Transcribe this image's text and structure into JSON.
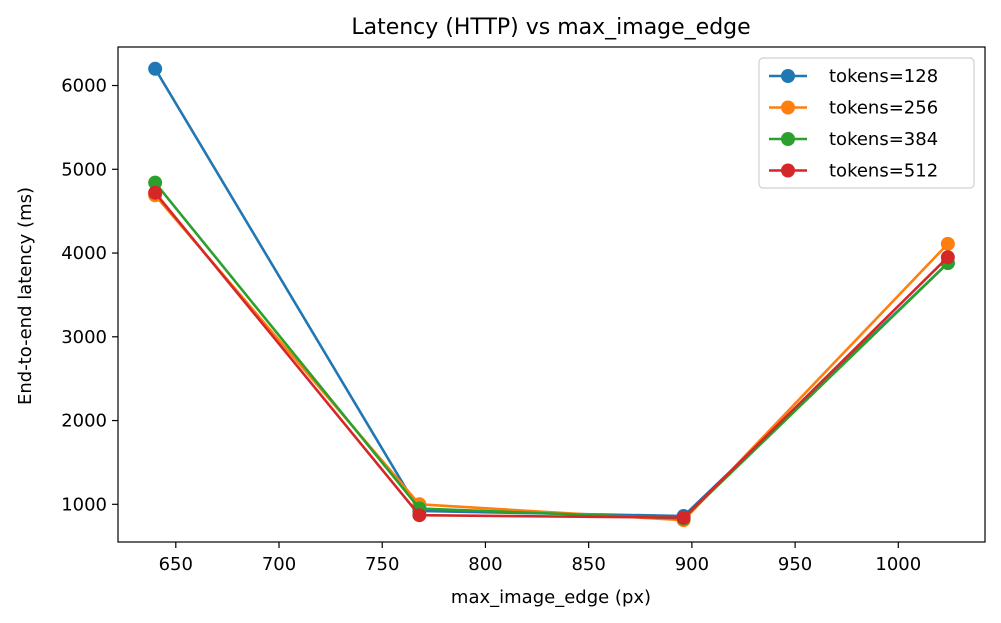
{
  "chart_data": {
    "type": "line",
    "title": "Latency (HTTP) vs max_image_edge",
    "xlabel": "max_image_edge (px)",
    "ylabel": "End-to-end latency (ms)",
    "xlim": [
      622,
      1042
    ],
    "ylim": [
      550,
      6460
    ],
    "xticks": [
      650,
      700,
      750,
      800,
      850,
      900,
      950,
      1000
    ],
    "yticks": [
      1000,
      2000,
      3000,
      4000,
      5000,
      6000
    ],
    "x": [
      640,
      768,
      896,
      1024
    ],
    "series": [
      {
        "name": "tokens=128",
        "color": "#1f77b4",
        "values": [
          6200,
          920,
          860,
          3880
        ]
      },
      {
        "name": "tokens=256",
        "color": "#ff7f0e",
        "values": [
          4690,
          1000,
          810,
          4110
        ]
      },
      {
        "name": "tokens=384",
        "color": "#2ca02c",
        "values": [
          4840,
          950,
          830,
          3880
        ]
      },
      {
        "name": "tokens=512",
        "color": "#d62728",
        "values": [
          4720,
          870,
          840,
          3950
        ]
      }
    ],
    "legend_position": "top-right",
    "grid": false
  }
}
